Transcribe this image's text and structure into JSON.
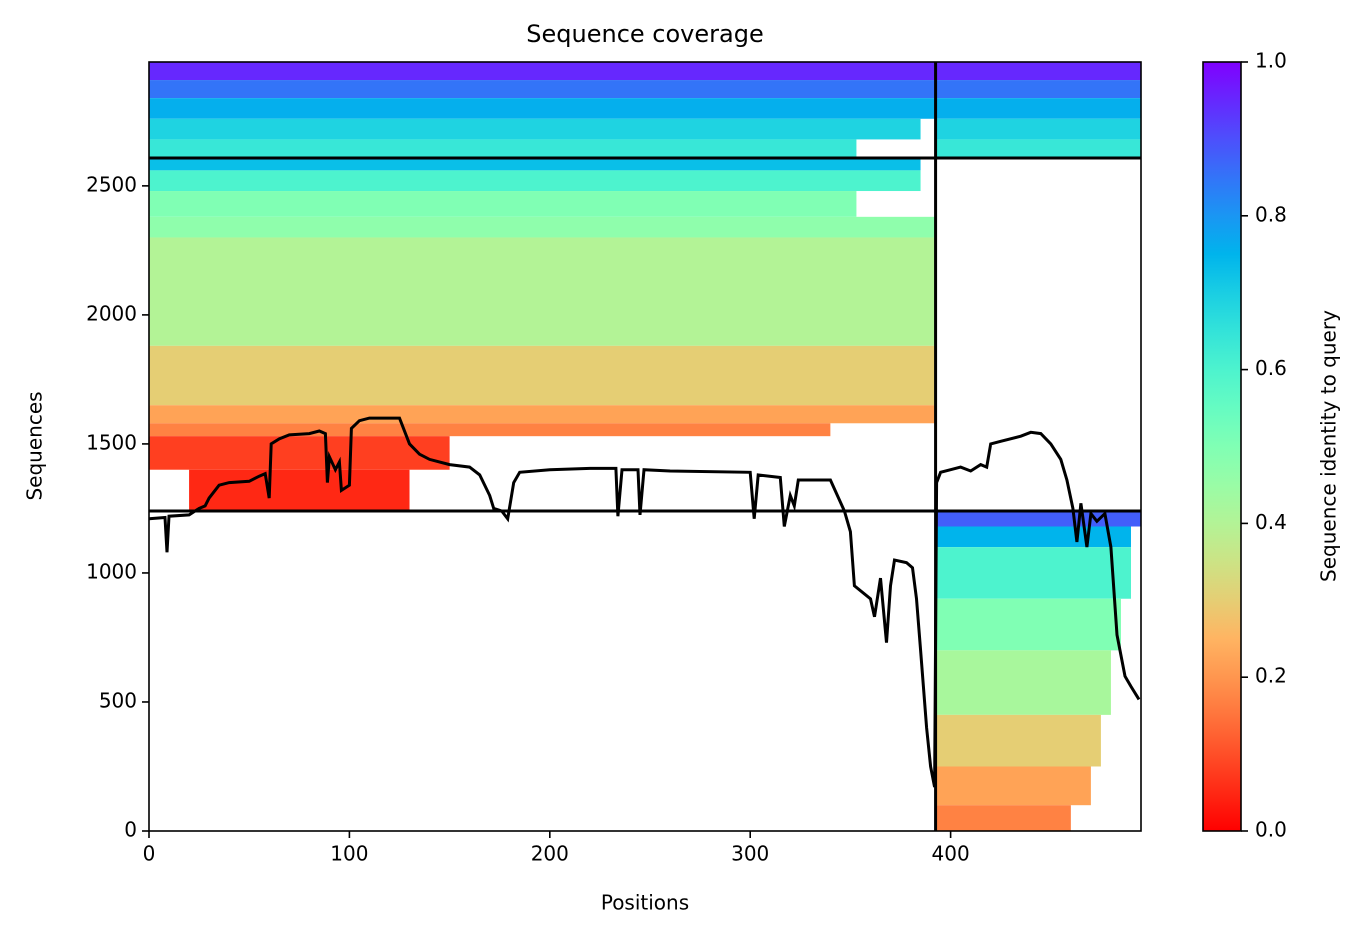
{
  "chart_data": {
    "type": "coverage",
    "title": "Sequence coverage",
    "xlabel": "Positions",
    "ylabel": "Sequences",
    "xlim": [
      0,
      495
    ],
    "ylim": [
      0,
      2980
    ],
    "xticks": [
      0,
      100,
      200,
      300,
      400
    ],
    "yticks": [
      0,
      500,
      1000,
      1500,
      2000,
      2500
    ],
    "colormap": "rainbow_r",
    "colorbar": {
      "label": "Sequence identity to query",
      "lim": [
        0,
        1
      ],
      "ticks": [
        {
          "value": 0,
          "label": "0.0"
        },
        {
          "value": 0.2,
          "label": "0.2"
        },
        {
          "value": 0.4,
          "label": "0.4"
        },
        {
          "value": 0.6,
          "label": "0.6"
        },
        {
          "value": 0.8,
          "label": "0.8"
        },
        {
          "value": 1,
          "label": "1.0"
        }
      ]
    },
    "bands": [
      {
        "x0": 0,
        "x1": 495,
        "y0": 2910,
        "y1": 2980,
        "identity": 0.95
      },
      {
        "x0": 0,
        "x1": 495,
        "y0": 2840,
        "y1": 2910,
        "identity": 0.85
      },
      {
        "x0": 0,
        "x1": 495,
        "y0": 2760,
        "y1": 2840,
        "identity": 0.76
      },
      {
        "x0": 0,
        "x1": 385,
        "y0": 2680,
        "y1": 2760,
        "identity": 0.69
      },
      {
        "x0": 392.5,
        "x1": 495,
        "y0": 2680,
        "y1": 2760,
        "identity": 0.69
      },
      {
        "x0": 0,
        "x1": 353,
        "y0": 2608,
        "y1": 2680,
        "identity": 0.64
      },
      {
        "x0": 392.5,
        "x1": 495,
        "y0": 2608,
        "y1": 2680,
        "identity": 0.64
      },
      {
        "x0": 0,
        "x1": 385,
        "y0": 2560,
        "y1": 2608,
        "identity": 0.73
      },
      {
        "x0": 0,
        "x1": 385,
        "y0": 2480,
        "y1": 2560,
        "identity": 0.6
      },
      {
        "x0": 0,
        "x1": 353,
        "y0": 2380,
        "y1": 2480,
        "identity": 0.5
      },
      {
        "x0": 0,
        "x1": 392.5,
        "y0": 2300,
        "y1": 2380,
        "identity": 0.47
      },
      {
        "x0": 0,
        "x1": 392.5,
        "y0": 1880,
        "y1": 2300,
        "identity": 0.4
      },
      {
        "x0": 0,
        "x1": 392.5,
        "y0": 1650,
        "y1": 1880,
        "identity": 0.3
      },
      {
        "x0": 0,
        "x1": 392.5,
        "y0": 1580,
        "y1": 1650,
        "identity": 0.22
      },
      {
        "x0": 0,
        "x1": 340,
        "y0": 1530,
        "y1": 1580,
        "identity": 0.17
      },
      {
        "x0": 0,
        "x1": 150,
        "y0": 1400,
        "y1": 1530,
        "identity": 0.08
      },
      {
        "x0": 20,
        "x1": 130,
        "y0": 1240,
        "y1": 1400,
        "identity": 0.05
      },
      {
        "x0": 392.5,
        "x1": 495,
        "y0": 1180,
        "y1": 1240,
        "identity": 0.88
      },
      {
        "x0": 392.5,
        "x1": 490,
        "y0": 1100,
        "y1": 1180,
        "identity": 0.75
      },
      {
        "x0": 392.5,
        "x1": 490,
        "y0": 900,
        "y1": 1100,
        "identity": 0.6
      },
      {
        "x0": 392.5,
        "x1": 485,
        "y0": 700,
        "y1": 900,
        "identity": 0.5
      },
      {
        "x0": 392.5,
        "x1": 480,
        "y0": 450,
        "y1": 700,
        "identity": 0.42
      },
      {
        "x0": 392.5,
        "x1": 475,
        "y0": 250,
        "y1": 450,
        "identity": 0.3
      },
      {
        "x0": 392.5,
        "x1": 470,
        "y0": 100,
        "y1": 250,
        "identity": 0.22
      },
      {
        "x0": 392.5,
        "x1": 460,
        "y0": 0,
        "y1": 100,
        "identity": 0.17
      }
    ],
    "boundaries": {
      "x": [
        392.5
      ],
      "y": [
        1240,
        2608
      ]
    },
    "coverage": {
      "x": [
        0,
        8,
        9,
        10,
        20,
        25,
        28,
        30,
        35,
        40,
        50,
        55,
        58,
        60,
        61,
        65,
        70,
        80,
        85,
        88,
        89,
        90,
        93,
        95,
        96,
        100,
        101,
        105,
        110,
        120,
        125,
        130,
        135,
        140,
        150,
        160,
        165,
        170,
        172,
        176,
        179,
        182,
        185,
        200,
        220,
        233,
        234,
        236,
        244,
        245,
        247,
        260,
        300,
        302,
        304,
        315,
        317,
        320,
        322,
        324,
        340,
        347,
        350,
        352,
        360,
        362,
        365,
        368,
        370,
        372,
        378,
        381,
        383,
        385,
        388,
        390,
        392,
        393,
        395,
        400,
        405,
        410,
        415,
        418,
        420,
        425,
        435,
        440,
        445,
        450,
        455,
        458,
        461,
        463,
        465,
        468,
        470,
        473,
        477,
        480,
        483,
        487,
        490,
        494
      ],
      "y": [
        1210,
        1215,
        1080,
        1220,
        1225,
        1250,
        1260,
        1290,
        1340,
        1350,
        1355,
        1375,
        1385,
        1290,
        1500,
        1520,
        1535,
        1540,
        1550,
        1540,
        1350,
        1450,
        1400,
        1430,
        1320,
        1340,
        1560,
        1590,
        1600,
        1600,
        1600,
        1500,
        1460,
        1440,
        1420,
        1410,
        1380,
        1300,
        1250,
        1240,
        1210,
        1350,
        1390,
        1400,
        1405,
        1405,
        1220,
        1400,
        1400,
        1225,
        1400,
        1395,
        1390,
        1210,
        1380,
        1370,
        1180,
        1300,
        1260,
        1360,
        1360,
        1240,
        1160,
        950,
        900,
        830,
        980,
        730,
        950,
        1050,
        1040,
        1020,
        900,
        700,
        400,
        250,
        170,
        1350,
        1390,
        1400,
        1410,
        1395,
        1420,
        1410,
        1500,
        1510,
        1530,
        1545,
        1540,
        1500,
        1440,
        1360,
        1250,
        1120,
        1270,
        1100,
        1230,
        1200,
        1230,
        1100,
        760,
        600,
        560,
        510
      ]
    }
  }
}
